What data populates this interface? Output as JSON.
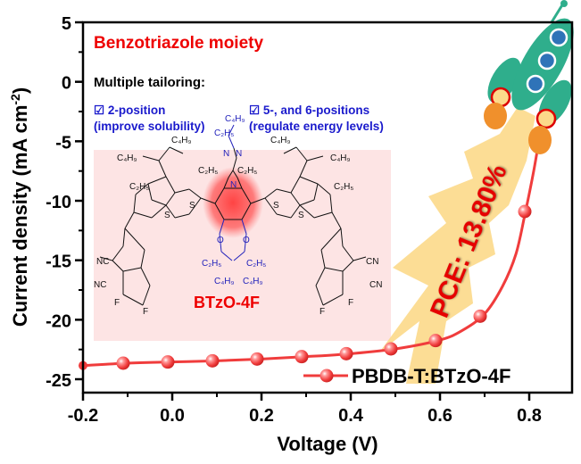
{
  "chart_data": {
    "type": "line",
    "title": "",
    "xlabel": "Voltage (V)",
    "ylabel": "Current density (mA cm⁻²)",
    "ylabel_main": "Current density (mA cm",
    "ylabel_sup": "-2",
    "ylabel_close": ")",
    "xlim": [
      -0.2,
      0.896
    ],
    "ylim": [
      -26,
      5
    ],
    "xticks": [
      -0.2,
      0.0,
      0.2,
      0.4,
      0.6,
      0.8
    ],
    "xtick_labels": [
      "-0.2",
      "0.0",
      "0.2",
      "0.4",
      "0.6",
      "0.8"
    ],
    "xminor": [
      -0.1,
      0.1,
      0.3,
      0.5,
      0.7
    ],
    "yticks": [
      5,
      0,
      -5,
      -10,
      -15,
      -20,
      -25
    ],
    "ytick_labels": [
      "5",
      "0",
      "-5",
      "-10",
      "-15",
      "-20",
      "-25"
    ],
    "yminor": [
      2.5,
      -2.5,
      -7.5,
      -12.5,
      -17.5,
      -22.5
    ],
    "grid": false,
    "legend_position": "bottom-right",
    "series": [
      {
        "name": "PBDB-T:BTzO-4F",
        "color": "#f03c3c",
        "curve": [
          [
            -0.2,
            -23.85
          ],
          [
            -0.1,
            -23.65
          ],
          [
            0.0,
            -23.55
          ],
          [
            0.1,
            -23.45
          ],
          [
            0.2,
            -23.3
          ],
          [
            0.3,
            -23.1
          ],
          [
            0.4,
            -22.85
          ],
          [
            0.5,
            -22.45
          ],
          [
            0.6,
            -21.7
          ],
          [
            0.65,
            -20.9
          ],
          [
            0.7,
            -19.5
          ],
          [
            0.74,
            -17.2
          ],
          [
            0.77,
            -14.5
          ],
          [
            0.79,
            -11.2
          ],
          [
            0.81,
            -7.5
          ],
          [
            0.825,
            -4.2
          ]
        ],
        "markers": [
          [
            -0.11,
            -23.65
          ],
          [
            -0.01,
            -23.55
          ],
          [
            0.09,
            -23.45
          ],
          [
            0.19,
            -23.3
          ],
          [
            0.29,
            -23.1
          ],
          [
            0.39,
            -22.85
          ],
          [
            0.49,
            -22.45
          ],
          [
            0.59,
            -21.75
          ],
          [
            0.69,
            -19.7
          ],
          [
            0.79,
            -10.9
          ]
        ]
      }
    ],
    "annotations": {
      "heading": "Benzotriazole moiety",
      "subheading": "Multiple tailoring:",
      "option1_line1": "☑  2-position",
      "option1_line2": "(improve solubility)",
      "option2_line1": "☑  5-, and 6-positions",
      "option2_line2": "(regulate energy levels)",
      "molecule_name": "BTzO-4F",
      "pce_label": "PCE: 13.80%",
      "rocket_icon": "rocket-icon"
    },
    "molecule_labels": {
      "c4h9": "C₄H₉",
      "c2h5": "C₂H₅",
      "nc": "NC",
      "cn": "CN",
      "s": "S",
      "o": "O",
      "n": "N",
      "f": "F"
    },
    "colors": {
      "series": "#f03c3c",
      "heading": "#ee0000",
      "blue_text": "#1a1acc",
      "molecule_box": "#fde4e4",
      "flame": "#fcd98a",
      "rocket_body": "#2fae8c",
      "rocket_window": "#2f73b8",
      "exhaust": "#f0902c"
    }
  }
}
